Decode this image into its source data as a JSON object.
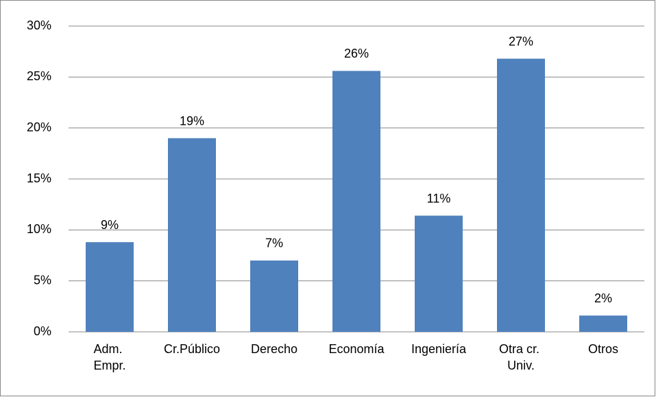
{
  "chart_data": {
    "type": "bar",
    "categories": [
      "Adm. Empr.",
      "Cr.Público",
      "Derecho",
      "Economía",
      "Ingeniería",
      "Otra cr. Univ.",
      "Otros"
    ],
    "values": [
      8.8,
      19.0,
      7.0,
      25.6,
      11.4,
      26.8,
      1.6
    ],
    "value_labels": [
      "9%",
      "19%",
      "7%",
      "26%",
      "11%",
      "27%",
      "2%"
    ],
    "color": "#4f81bd",
    "ylim": [
      0,
      30
    ],
    "yticks": [
      {
        "value": 0,
        "label": "0%"
      },
      {
        "value": 5,
        "label": "5%"
      },
      {
        "value": 10,
        "label": "10%"
      },
      {
        "value": 15,
        "label": "15%"
      },
      {
        "value": 20,
        "label": "20%"
      },
      {
        "value": 25,
        "label": "25%"
      },
      {
        "value": 30,
        "label": "30%"
      }
    ],
    "grid": true
  }
}
